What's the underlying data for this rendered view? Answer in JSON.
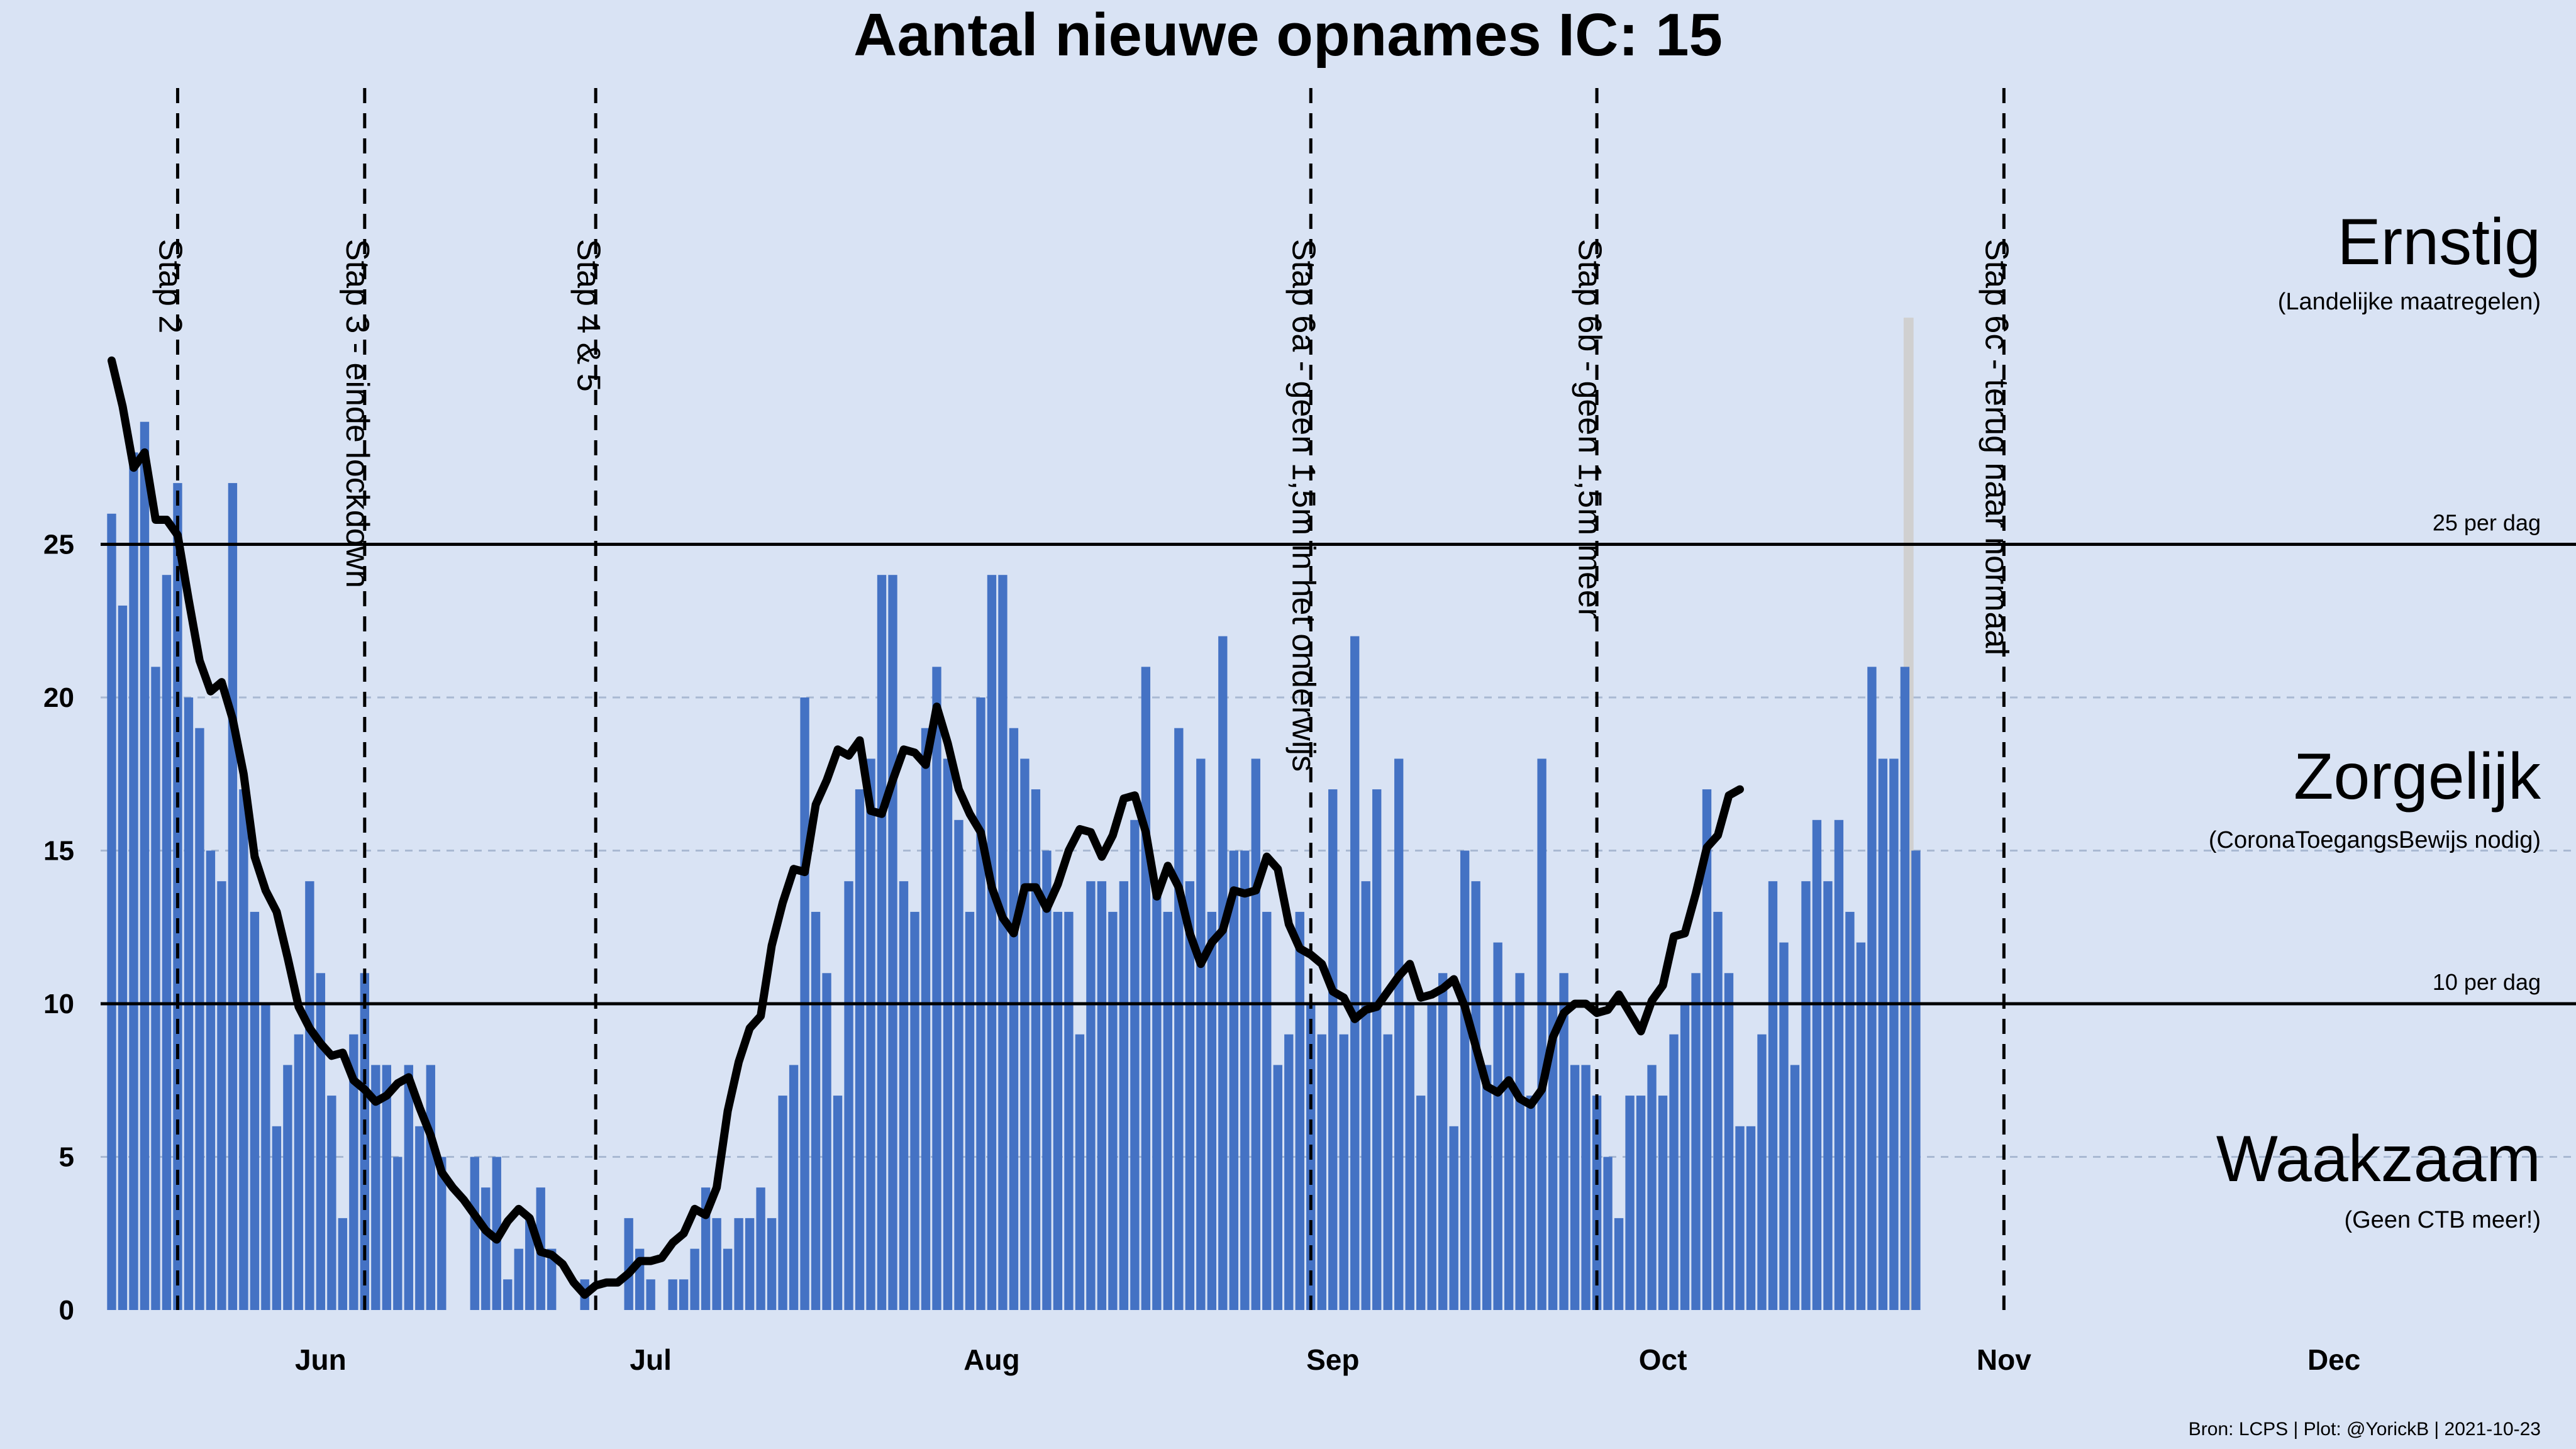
{
  "chart_data": {
    "type": "bar",
    "title": "Aantal nieuwe opnames IC:  15",
    "xlabel": "",
    "ylabel": "",
    "x_start_date": "2021-05-13",
    "xlim": [
      "2021-05-12",
      "2021-12-23"
    ],
    "ylim": [
      0,
      33
    ],
    "yticks": [
      0,
      5,
      10,
      15,
      20,
      25
    ],
    "month_ticks": [
      {
        "label": "Jun",
        "date": "2021-06-01"
      },
      {
        "label": "Jul",
        "date": "2021-07-01"
      },
      {
        "label": "Aug",
        "date": "2021-08-01"
      },
      {
        "label": "Sep",
        "date": "2021-09-01"
      },
      {
        "label": "Oct",
        "date": "2021-10-01"
      },
      {
        "label": "Nov",
        "date": "2021-11-01"
      },
      {
        "label": "Dec",
        "date": "2021-12-01"
      }
    ],
    "bar_color": "#4472c4",
    "line_color": "#000000",
    "series": [
      {
        "values": [
          26,
          23,
          28,
          29,
          21,
          24,
          27,
          20,
          19,
          15,
          14,
          27,
          17,
          13,
          10,
          6,
          8,
          9,
          14,
          11,
          7,
          3,
          9,
          11,
          8,
          8,
          5,
          8,
          6,
          8,
          5,
          0,
          0,
          5,
          4,
          5,
          1,
          2,
          3,
          4,
          2,
          0,
          0,
          1,
          0,
          0,
          0,
          3,
          2,
          1,
          0,
          1,
          1,
          2,
          4,
          3,
          2,
          3,
          3,
          4,
          3,
          7,
          8,
          20,
          13,
          11,
          7,
          14,
          17,
          18,
          24,
          24,
          14,
          13,
          19,
          21,
          18,
          16,
          13,
          20,
          24,
          24,
          19,
          18,
          17,
          15,
          13,
          13,
          9,
          14,
          14,
          13,
          14,
          16,
          21,
          14,
          13,
          19,
          14,
          18,
          13,
          22,
          15,
          15,
          18,
          13,
          8,
          9,
          13,
          10,
          9,
          17,
          9,
          22,
          14,
          17,
          9,
          18,
          10,
          7,
          10,
          11,
          6,
          15,
          14,
          8,
          12,
          10,
          11,
          7,
          18,
          10,
          11,
          8,
          8,
          7,
          5,
          3,
          7,
          7,
          8,
          7,
          9,
          10,
          11,
          17,
          13,
          11,
          6,
          6,
          9,
          14,
          12,
          8,
          14,
          16,
          14,
          16,
          13,
          12,
          21,
          18,
          18,
          21,
          15
        ]
      },
      {
        "values": [
          31,
          29.5,
          27.5,
          28,
          25.8,
          25.8,
          25.3,
          23.2,
          21.2,
          20.2,
          20.5,
          19.3,
          17.5,
          14.8,
          13.7,
          13,
          11.5,
          9.9,
          9.2,
          8.7,
          8.3,
          8.4,
          7.5,
          7.2,
          6.8,
          7,
          7.4,
          7.6,
          6.6,
          5.7,
          4.5,
          4,
          3.6,
          3.1,
          2.6,
          2.3,
          2.9,
          3.3,
          3,
          1.9,
          1.8,
          1.5,
          0.9,
          0.5,
          0.8,
          0.9,
          0.9,
          1.2,
          1.6,
          1.6,
          1.7,
          2.2,
          2.5,
          3.3,
          3.1,
          4,
          6.5,
          8.1,
          9.2,
          9.6,
          11.9,
          13.3,
          14.4,
          14.3,
          16.5,
          17.3,
          18.3,
          18.1,
          18.6,
          16.3,
          16.2,
          17.3,
          18.3,
          18.2,
          17.8,
          19.7,
          18.5,
          17,
          16.2,
          15.6,
          13.8,
          12.8,
          12.3,
          13.8,
          13.8,
          13.1,
          13.9,
          15,
          15.7,
          15.6,
          14.8,
          15.5,
          16.7,
          16.8,
          15.6,
          13.5,
          14.5,
          13.8,
          12.3,
          11.3,
          12,
          12.4,
          13.7,
          13.6,
          13.7,
          14.8,
          14.4,
          12.6,
          11.8,
          11.6,
          11.3,
          10.4,
          10.2,
          9.5,
          9.8,
          9.9,
          10.4,
          10.9,
          11.3,
          10.2,
          10.3,
          10.5,
          10.8,
          9.9,
          8.6,
          7.3,
          7.1,
          7.5,
          6.9,
          6.7,
          7.2,
          8.9,
          9.7,
          10,
          10,
          9.7,
          9.8,
          10.3,
          9.7,
          9.1,
          10.1,
          10.6,
          12.2,
          12.3,
          13.6,
          15.1,
          15.5,
          16.8,
          17
        ]
      }
    ],
    "thresholds": [
      {
        "value": 25,
        "label": "25 per dag"
      },
      {
        "value": 10,
        "label": "10 per dag"
      }
    ],
    "zones": [
      {
        "label": "Ernstig",
        "sublabel": "(Landelijke maatregelen)"
      },
      {
        "label": "Zorgelijk",
        "sublabel": "(CoronaToegangsBewijs nodig)"
      },
      {
        "label": "Waakzaam",
        "sublabel": "(Geen CTB meer!)"
      }
    ],
    "events": [
      {
        "date": "2021-05-19",
        "label": "Stap 2"
      },
      {
        "date": "2021-06-05",
        "label": "Stap 3 - einde lockdown"
      },
      {
        "date": "2021-06-26",
        "label": "Stap 4 & 5"
      },
      {
        "date": "2021-08-30",
        "label": "Stap 6a - geen 1,5m in het onderwijs"
      },
      {
        "date": "2021-09-25",
        "label": "Stap 6b - geen 1,5m meer"
      },
      {
        "date": "2021-11-01",
        "label": "Stap 6c - terug naar normaal"
      }
    ],
    "highlight_date": "2021-10-23",
    "footer": "Bron: LCPS | Plot: @YorickB |  2021-10-23"
  }
}
